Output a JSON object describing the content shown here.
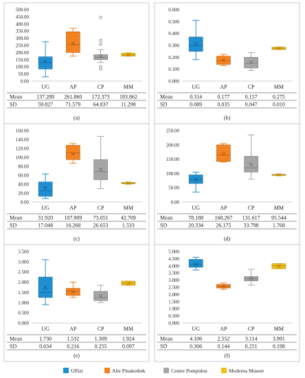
{
  "legend": [
    {
      "name": "Uffizi",
      "color": "#1f8fd1"
    },
    {
      "name": "Alte Pinakothek",
      "color": "#f58220"
    },
    {
      "name": "Centre Pompidou",
      "color": "#a6a6a6"
    },
    {
      "name": "Moderna Museet",
      "color": "#f5bd16"
    }
  ],
  "stat_labels": [
    "Mean",
    "SD"
  ],
  "chart_data": [
    {
      "type": "box",
      "panel_label": "(a)",
      "categories": [
        "UG",
        "AP",
        "CP",
        "MM"
      ],
      "ylim": [
        0,
        500
      ],
      "ytick_step": 50,
      "ytick_decimals": 2,
      "grid": false,
      "boxes": [
        {
          "min": 30,
          "q1": 85,
          "median": 130,
          "q3": 170,
          "max": 275,
          "mean": 137.289,
          "outliers": []
        },
        {
          "min": 175,
          "q1": 200,
          "median": 255,
          "q3": 345,
          "max": 370,
          "mean": 261.86,
          "outliers": []
        },
        {
          "min": 130,
          "q1": 150,
          "median": 165,
          "q3": 185,
          "max": 220,
          "mean": 172.373,
          "outliers": [
            85,
            100,
            260,
            285,
            445
          ]
        },
        {
          "min": 175,
          "q1": 175,
          "median": 183,
          "q3": 195,
          "max": 198,
          "mean": 183.862,
          "outliers": []
        }
      ],
      "table": {
        "mean": [
          "137.289",
          "261.860",
          "172.373",
          "183.862"
        ],
        "sd": [
          "59.827",
          "71.579",
          "64.837",
          "11.298"
        ]
      }
    },
    {
      "type": "box",
      "panel_label": "(b)",
      "categories": [
        "UG",
        "AP",
        "CP",
        "MM"
      ],
      "ylim": [
        0,
        0.6
      ],
      "ytick_step": 0.1,
      "ytick_decimals": 3,
      "grid": false,
      "boxes": [
        {
          "min": 0.18,
          "q1": 0.25,
          "median": 0.3,
          "q3": 0.37,
          "max": 0.51,
          "mean": 0.314,
          "outliers": []
        },
        {
          "min": 0.13,
          "q1": 0.14,
          "median": 0.17,
          "q3": 0.21,
          "max": 0.225,
          "mean": 0.177,
          "outliers": []
        },
        {
          "min": 0.09,
          "q1": 0.11,
          "median": 0.15,
          "q3": 0.2,
          "max": 0.24,
          "mean": 0.157,
          "outliers": []
        },
        {
          "min": 0.265,
          "q1": 0.265,
          "median": 0.275,
          "q3": 0.285,
          "max": 0.285,
          "mean": 0.275,
          "outliers": []
        }
      ],
      "table": {
        "mean": [
          "0.314",
          "0.177",
          "0.157",
          "0.275"
        ],
        "sd": [
          "0.089",
          "0.035",
          "0.047",
          "0.010"
        ]
      }
    },
    {
      "type": "box",
      "panel_label": "(c)",
      "categories": [
        "UG",
        "AP",
        "CP",
        "MM"
      ],
      "ylim": [
        0,
        160
      ],
      "ytick_step": 20,
      "ytick_decimals": 2,
      "grid": false,
      "boxes": [
        {
          "min": 8,
          "q1": 13,
          "median": 25,
          "q3": 45,
          "max": 63,
          "mean": 31.92,
          "outliers": []
        },
        {
          "min": 87,
          "q1": 95,
          "median": 110,
          "q3": 127,
          "max": 131,
          "mean": 107.909,
          "outliers": []
        },
        {
          "min": 30,
          "q1": 50,
          "median": 68,
          "q3": 95,
          "max": 147,
          "mean": 73.051,
          "outliers": []
        },
        {
          "min": 40,
          "q1": 41,
          "median": 42,
          "q3": 44,
          "max": 44,
          "mean": 42.709,
          "outliers": []
        }
      ],
      "table": {
        "mean": [
          "31.920",
          "107.909",
          "73.051",
          "42.709"
        ],
        "sd": [
          "17.048",
          "16.268",
          "26.653",
          "1.533"
        ]
      }
    },
    {
      "type": "box",
      "panel_label": "(d)",
      "categories": [
        "UG",
        "AP",
        "CP",
        "MM"
      ],
      "ylim": [
        0,
        250
      ],
      "ytick_step": 50,
      "ytick_decimals": 2,
      "grid": false,
      "boxes": [
        {
          "min": 35,
          "q1": 65,
          "median": 78,
          "q3": 95,
          "max": 105,
          "mean": 78.188,
          "outliers": []
        },
        {
          "min": 140,
          "q1": 142,
          "median": 165,
          "q3": 200,
          "max": 205,
          "mean": 168.267,
          "outliers": []
        },
        {
          "min": 80,
          "q1": 105,
          "median": 120,
          "q3": 160,
          "max": 235,
          "mean": 131.617,
          "outliers": []
        },
        {
          "min": 93,
          "q1": 93,
          "median": 95,
          "q3": 97,
          "max": 97,
          "mean": 95.544,
          "outliers": []
        }
      ],
      "table": {
        "mean": [
          "78.188",
          "168.267",
          "131.617",
          "95.544"
        ],
        "sd": [
          "20.334",
          "26.175",
          "33.798",
          "1.768"
        ]
      }
    },
    {
      "type": "box",
      "panel_label": "(e)",
      "categories": [
        "UG",
        "AP",
        "CP",
        "MM"
      ],
      "ylim": [
        0,
        3.5
      ],
      "ytick_step": 0.5,
      "ytick_decimals": 3,
      "grid": false,
      "boxes": [
        {
          "min": 0.9,
          "q1": 1.25,
          "median": 1.5,
          "q3": 2.25,
          "max": 3.1,
          "mean": 1.73,
          "outliers": []
        },
        {
          "min": 1.25,
          "q1": 1.35,
          "median": 1.55,
          "q3": 1.7,
          "max": 2.0,
          "mean": 1.532,
          "outliers": []
        },
        {
          "min": 1.0,
          "q1": 1.1,
          "median": 1.25,
          "q3": 1.55,
          "max": 1.85,
          "mean": 1.309,
          "outliers": []
        },
        {
          "min": 1.85,
          "q1": 1.85,
          "median": 1.95,
          "q3": 2.05,
          "max": 2.05,
          "mean": 1.924,
          "outliers": []
        }
      ],
      "table": {
        "mean": [
          "1.730",
          "1.532",
          "1.309",
          "1.924"
        ],
        "sd": [
          "0.634",
          "0.216",
          "0.255",
          "0.097"
        ]
      }
    },
    {
      "type": "box",
      "panel_label": "(f)",
      "categories": [
        "UG",
        "AP",
        "CP",
        "MM"
      ],
      "ylim": [
        0,
        5
      ],
      "ytick_step": 0.5,
      "ytick_decimals": 3,
      "grid": false,
      "boxes": [
        {
          "min": 3.7,
          "q1": 3.9,
          "median": 4.1,
          "q3": 4.45,
          "max": 4.6,
          "mean": 4.106,
          "outliers": []
        },
        {
          "min": 2.35,
          "q1": 2.45,
          "median": 2.55,
          "q3": 2.7,
          "max": 2.8,
          "mean": 2.552,
          "outliers": []
        },
        {
          "min": 2.65,
          "q1": 2.95,
          "median": 3.1,
          "q3": 3.25,
          "max": 3.75,
          "mean": 3.114,
          "outliers": []
        },
        {
          "min": 3.8,
          "q1": 3.8,
          "median": 4.0,
          "q3": 4.15,
          "max": 4.15,
          "mean": 3.991,
          "outliers": []
        }
      ],
      "table": {
        "mean": [
          "4.106",
          "2.552",
          "3.114",
          "3.991"
        ],
        "sd": [
          "0.306",
          "0.144",
          "0.251",
          "0.198"
        ]
      }
    }
  ]
}
